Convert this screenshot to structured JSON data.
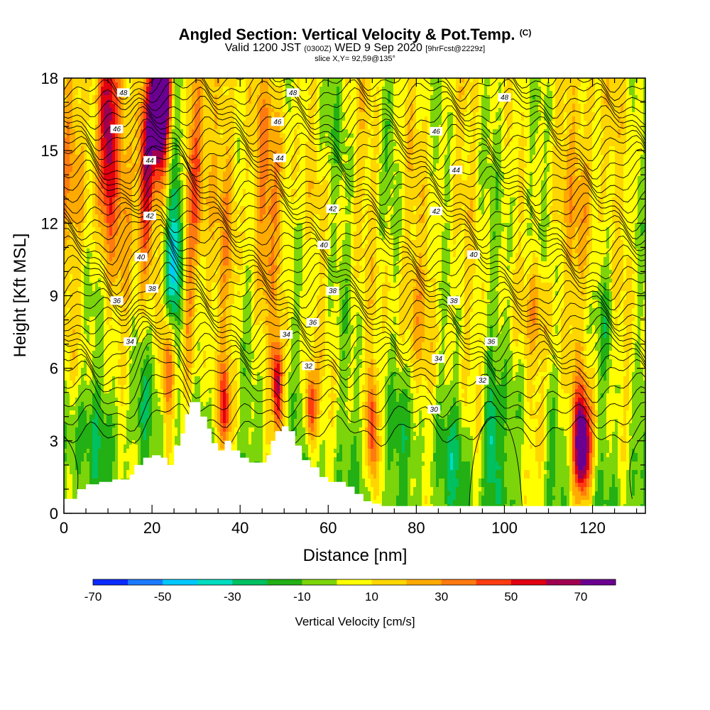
{
  "header": {
    "title_main": "Angled Section: Vertical Velocity & Pot.Temp.",
    "title_unit": "(C)",
    "valid_prefix": "Valid 1200 JST",
    "valid_zulu": "(0300Z)",
    "valid_date": "WED 9 Sep 2020",
    "forecast": "[9hrFcst@2229z]",
    "slice": "slice X,Y= 92,59@135°"
  },
  "chart_data": {
    "type": "heatmap",
    "xlabel": "Distance [nm]",
    "ylabel": "Height [Kft MSL]",
    "xlim": [
      0,
      132
    ],
    "ylim": [
      0,
      18
    ],
    "x_ticks": [
      0,
      20,
      40,
      60,
      80,
      100,
      120
    ],
    "y_ticks": [
      0,
      3,
      6,
      9,
      12,
      15,
      18
    ],
    "colorbar": {
      "label": "Vertical Velocity [cm/s]",
      "levels": [
        -70,
        -60,
        -50,
        -40,
        -30,
        -20,
        -10,
        0,
        10,
        20,
        30,
        40,
        50,
        60,
        70,
        80
      ],
      "tick_labels": [
        "-70",
        "-50",
        "-30",
        "-10",
        "10",
        "30",
        "50",
        "70"
      ],
      "colors": [
        "#0a2aff",
        "#1a7aff",
        "#00c8ff",
        "#00dcc0",
        "#00c060",
        "#22b014",
        "#7cd40a",
        "#ffff00",
        "#ffd600",
        "#ffaa00",
        "#ff7a10",
        "#ff3c10",
        "#e00010",
        "#a00050",
        "#6a0090"
      ]
    },
    "contour_labels": [
      {
        "value": "48",
        "x": 13.5,
        "y": 17.4
      },
      {
        "value": "48",
        "x": 52,
        "y": 17.4
      },
      {
        "value": "48",
        "x": 100,
        "y": 17.2
      },
      {
        "value": "46",
        "x": 12,
        "y": 15.9
      },
      {
        "value": "46",
        "x": 48.5,
        "y": 16.2
      },
      {
        "value": "46",
        "x": 84.5,
        "y": 15.8
      },
      {
        "value": "44",
        "x": 19.5,
        "y": 14.6
      },
      {
        "value": "44",
        "x": 49,
        "y": 14.7
      },
      {
        "value": "44",
        "x": 89,
        "y": 14.2
      },
      {
        "value": "42",
        "x": 19.5,
        "y": 12.3
      },
      {
        "value": "42",
        "x": 61,
        "y": 12.6
      },
      {
        "value": "42",
        "x": 84.5,
        "y": 12.5
      },
      {
        "value": "40",
        "x": 17.5,
        "y": 10.6
      },
      {
        "value": "40",
        "x": 59,
        "y": 11.1
      },
      {
        "value": "40",
        "x": 93,
        "y": 10.7
      },
      {
        "value": "38",
        "x": 20,
        "y": 9.3
      },
      {
        "value": "38",
        "x": 61,
        "y": 9.2
      },
      {
        "value": "38",
        "x": 88.5,
        "y": 8.8
      },
      {
        "value": "36",
        "x": 12,
        "y": 8.8
      },
      {
        "value": "36",
        "x": 56.5,
        "y": 7.9
      },
      {
        "value": "36",
        "x": 97,
        "y": 7.1
      },
      {
        "value": "34",
        "x": 15,
        "y": 7.1
      },
      {
        "value": "34",
        "x": 50.5,
        "y": 7.4
      },
      {
        "value": "34",
        "x": 85,
        "y": 6.4
      },
      {
        "value": "32",
        "x": 55.5,
        "y": 6.1
      },
      {
        "value": "32",
        "x": 95,
        "y": 5.5
      },
      {
        "value": "30",
        "x": 84,
        "y": 4.3
      }
    ],
    "terrain_profile_kft": [
      [
        0,
        0.6
      ],
      [
        3,
        1.0
      ],
      [
        5,
        1.2
      ],
      [
        8,
        1.3
      ],
      [
        11,
        1.4
      ],
      [
        13,
        1.4
      ],
      [
        15,
        1.6
      ],
      [
        16,
        2.0
      ],
      [
        18,
        2.3
      ],
      [
        20,
        2.4
      ],
      [
        22,
        2.3
      ],
      [
        23.5,
        2.0
      ],
      [
        25,
        2.8
      ],
      [
        26.5,
        3.3
      ],
      [
        27.5,
        4.1
      ],
      [
        28.5,
        4.6
      ],
      [
        30,
        4.6
      ],
      [
        31,
        4.0
      ],
      [
        32.5,
        3.5
      ],
      [
        33.5,
        2.9
      ],
      [
        35,
        2.6
      ],
      [
        36.5,
        3.0
      ],
      [
        38,
        2.6
      ],
      [
        40,
        2.3
      ],
      [
        42,
        2.1
      ],
      [
        44,
        2.1
      ],
      [
        46,
        2.4
      ],
      [
        47,
        3.0
      ],
      [
        48,
        3.4
      ],
      [
        49.5,
        3.6
      ],
      [
        51,
        3.4
      ],
      [
        52.5,
        2.8
      ],
      [
        54,
        2.2
      ],
      [
        56,
        1.9
      ],
      [
        58,
        1.5
      ],
      [
        60,
        1.3
      ],
      [
        62,
        1.3
      ],
      [
        64,
        1.1
      ],
      [
        66,
        0.8
      ],
      [
        68,
        0.5
      ],
      [
        70,
        0.4
      ],
      [
        72,
        0.3
      ],
      [
        132,
        0.3
      ]
    ],
    "velocity_features": [
      {
        "x": 10,
        "y": 15.5,
        "sx": 1.5,
        "sy": 3.0,
        "v": 55
      },
      {
        "x": 18.5,
        "y": 13.5,
        "sx": 1.4,
        "sy": 3.0,
        "v": 55
      },
      {
        "x": 21.5,
        "y": 16.5,
        "sx": 1.6,
        "sy": 1.8,
        "v": 75
      },
      {
        "x": 22.5,
        "y": 17.5,
        "sx": 1.2,
        "sy": 0.9,
        "v": 80
      },
      {
        "x": 25.5,
        "y": 12.0,
        "sx": 1.6,
        "sy": 3.5,
        "v": -35
      },
      {
        "x": 24.5,
        "y": 9.5,
        "sx": 1.2,
        "sy": 1.6,
        "v": -30
      },
      {
        "x": 29.5,
        "y": 14.0,
        "sx": 1.6,
        "sy": 4.0,
        "v": 38
      },
      {
        "x": 28.0,
        "y": 9.0,
        "sx": 1.0,
        "sy": 3.0,
        "v": 25
      },
      {
        "x": 37.5,
        "y": 12.0,
        "sx": 1.8,
        "sy": 4.0,
        "v": 20
      },
      {
        "x": 47,
        "y": 13,
        "sx": 3.0,
        "sy": 3.5,
        "v": 22
      },
      {
        "x": 48.5,
        "y": 5.2,
        "sx": 0.8,
        "sy": 1.3,
        "v": 60
      },
      {
        "x": 56,
        "y": 4.3,
        "sx": 0.9,
        "sy": 1.1,
        "v": 50
      },
      {
        "x": 36.5,
        "y": 4.3,
        "sx": 0.8,
        "sy": 1.2,
        "v": 45
      },
      {
        "x": 70,
        "y": 3.5,
        "sx": 0.8,
        "sy": 1.6,
        "v": 45
      },
      {
        "x": 23.5,
        "y": 6,
        "sx": 1.0,
        "sy": 1.5,
        "v": 35
      },
      {
        "x": 118,
        "y": 3.0,
        "sx": 1.8,
        "sy": 1.8,
        "v": 45
      },
      {
        "x": 117.5,
        "y": 2.7,
        "sx": 1.1,
        "sy": 1.2,
        "v": 55
      },
      {
        "x": 108,
        "y": 8.5,
        "sx": 2.0,
        "sy": 1.6,
        "v": 25
      },
      {
        "x": 118,
        "y": 13.0,
        "sx": 2.5,
        "sy": 3.5,
        "v": 20
      },
      {
        "x": 97,
        "y": 3.0,
        "sx": 1.2,
        "sy": 1.8,
        "v": -30
      },
      {
        "x": 88,
        "y": 2.5,
        "sx": 3,
        "sy": 1.5,
        "v": -12
      },
      {
        "x": 75,
        "y": 3.5,
        "sx": 3,
        "sy": 1.4,
        "v": -10
      },
      {
        "x": 3,
        "y": 3.5,
        "sx": 3,
        "sy": 1.5,
        "v": -15
      },
      {
        "x": 11,
        "y": 3.6,
        "sx": 3,
        "sy": 1.2,
        "v": -12
      },
      {
        "x": 18,
        "y": 4.5,
        "sx": 1.5,
        "sy": 1.5,
        "v": -15
      },
      {
        "x": 130,
        "y": 1.8,
        "sx": 1.5,
        "sy": 1.5,
        "v": -15
      },
      {
        "x": 123,
        "y": 8.5,
        "sx": 1.2,
        "sy": 1.8,
        "v": -15
      },
      {
        "x": 74,
        "y": 15.5,
        "sx": 1.0,
        "sy": 1.4,
        "v": -12
      },
      {
        "x": 102,
        "y": 15,
        "sx": 3,
        "sy": 3,
        "v": -8
      },
      {
        "x": 14,
        "y": 13,
        "sx": 1.5,
        "sy": 3,
        "v": 20
      },
      {
        "x": 80,
        "y": 9,
        "sx": 5,
        "sy": 2,
        "v": 12
      },
      {
        "x": 60,
        "y": 16,
        "sx": 3,
        "sy": 2,
        "v": -8
      },
      {
        "x": 3,
        "y": 15,
        "sx": 3,
        "sy": 4,
        "v": 18
      },
      {
        "x": 108,
        "y": 3.5,
        "sx": 1.2,
        "sy": 1.5,
        "v": 20
      },
      {
        "x": 103,
        "y": 4.5,
        "sx": 1.5,
        "sy": 1.8,
        "v": -12
      }
    ]
  }
}
